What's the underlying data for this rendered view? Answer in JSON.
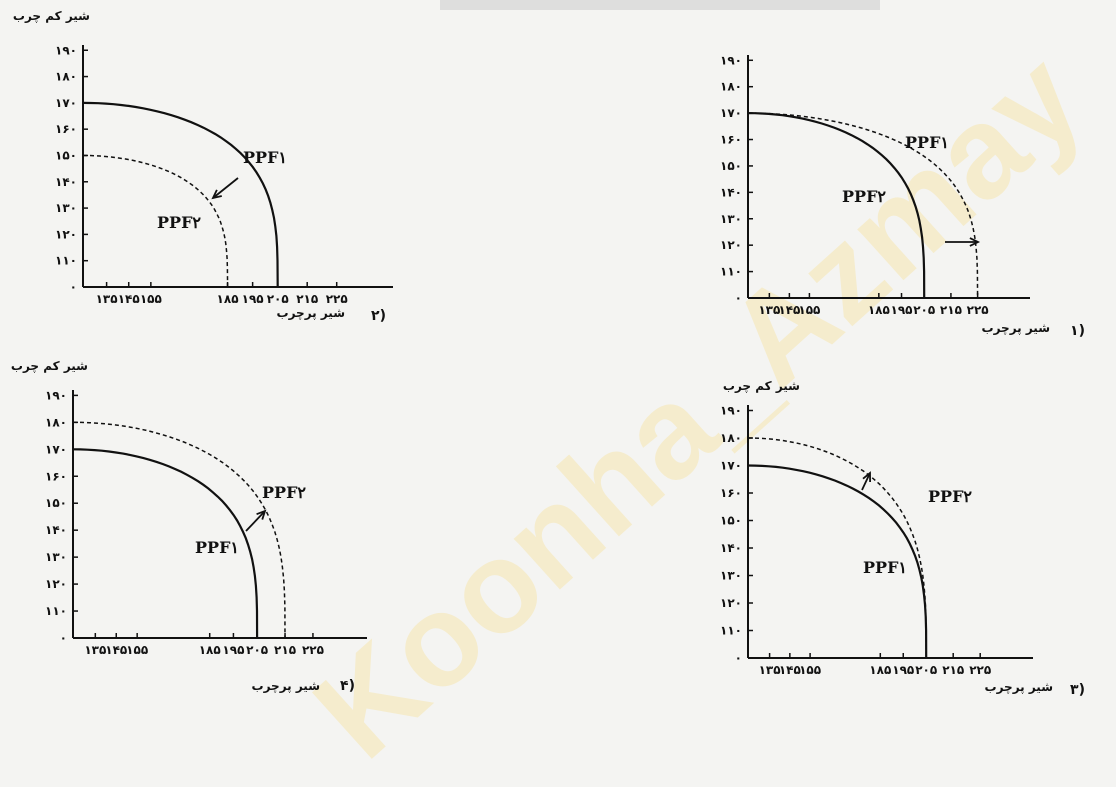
{
  "watermark": "Koonha_Azmay",
  "chart_data": [
    {
      "type": "line",
      "option": "۱)",
      "ylabel": "",
      "xlabel": "شیر پرچرب",
      "yticks": [
        "۱۹۰",
        "۱۸۰",
        "۱۷۰",
        "۱۶۰",
        "۱۵۰",
        "۱۴۰",
        "۱۳۰",
        "۱۲۰",
        "۱۱۰",
        "۰"
      ],
      "xticks": [
        "۱۳۵",
        "۱۴۵",
        "۱۵۵",
        "۱۸۵",
        "۱۹۵",
        "۲۰۵",
        "۲۱۵",
        "۲۲۵"
      ],
      "series": [
        {
          "name": "PPF۱",
          "style": "solid",
          "intercept_y": 170,
          "intercept_x": 205
        },
        {
          "name": "PPF۲",
          "style": "dashed",
          "intercept_y": 170,
          "intercept_x": 225
        }
      ],
      "arrow": "right"
    },
    {
      "type": "line",
      "option": "۲)",
      "ylabel": "شیر کم چرب",
      "xlabel": "شیر پرچرب",
      "yticks": [
        "۱۹۰",
        "۱۸۰",
        "۱۷۰",
        "۱۶۰",
        "۱۵۰",
        "۱۴۰",
        "۱۳۰",
        "۱۲۰",
        "۱۱۰",
        "۰"
      ],
      "xticks": [
        "۱۳۵",
        "۱۴۵",
        "۱۵۵",
        "۱۸۵",
        "۱۹۵",
        "۲۰۵",
        "۲۱۵",
        "۲۲۵"
      ],
      "series": [
        {
          "name": "PPF۱",
          "style": "solid",
          "intercept_y": 170,
          "intercept_x": 205
        },
        {
          "name": "PPF۲",
          "style": "dashed",
          "intercept_y": 150,
          "intercept_x": 185
        }
      ],
      "arrow": "inward"
    },
    {
      "type": "line",
      "option": "۳)",
      "ylabel": "شیر کم چرب",
      "xlabel": "شیر پرچرب",
      "yticks": [
        "۱۹۰",
        "۱۸۰",
        "۱۷۰",
        "۱۶۰",
        "۱۵۰",
        "۱۴۰",
        "۱۳۰",
        "۱۲۰",
        "۱۱۰",
        "۰"
      ],
      "xticks": [
        "۱۳۵",
        "۱۴۵",
        "۱۵۵",
        "۱۸۵",
        "۱۹۵",
        "۲۰۵",
        "۲۱۵",
        "۲۲۵"
      ],
      "series": [
        {
          "name": "PPF۱",
          "style": "solid",
          "intercept_y": 170,
          "intercept_x": 205
        },
        {
          "name": "PPF۲",
          "style": "dashed",
          "intercept_y": 180,
          "intercept_x": 205
        }
      ],
      "arrow": "up"
    },
    {
      "type": "line",
      "option": "۴)",
      "ylabel": "شیر کم چرب",
      "xlabel": "شیر پرچرب",
      "yticks": [
        "۱۹۰",
        "۱۸۰",
        "۱۷۰",
        "۱۶۰",
        "۱۵۰",
        "۱۴۰",
        "۱۳۰",
        "۱۲۰",
        "۱۱۰",
        "۰"
      ],
      "xticks": [
        "۱۳۵",
        "۱۴۵",
        "۱۵۵",
        "۱۸۵",
        "۱۹۵",
        "۲۰۵",
        "۲۱۵",
        "۲۲۵"
      ],
      "series": [
        {
          "name": "PPF۱",
          "style": "solid",
          "intercept_y": 170,
          "intercept_x": 205
        },
        {
          "name": "PPF۲",
          "style": "dashed",
          "intercept_y": 180,
          "intercept_x": 215
        }
      ],
      "arrow": "outward"
    }
  ]
}
